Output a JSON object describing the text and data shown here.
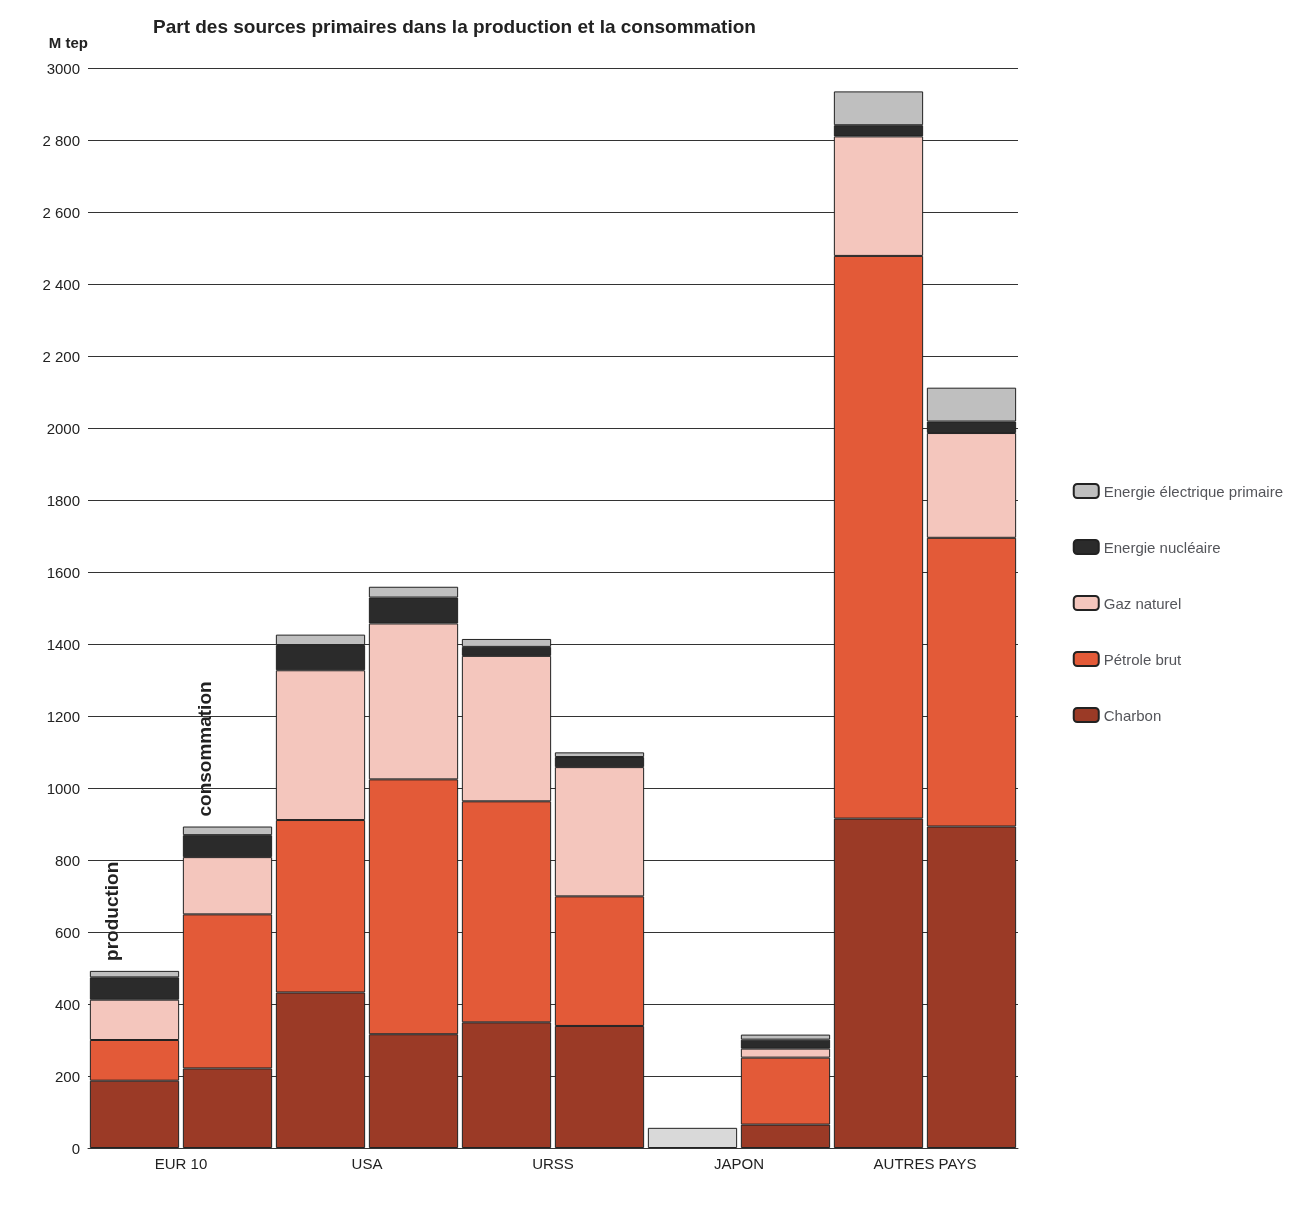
{
  "chart_data": {
    "type": "bar",
    "title": "Part des sources primaires dans la production et la consommation",
    "ylabel": "M tep",
    "categories": [
      "EUR 10",
      null,
      "USA",
      null,
      "URSS",
      null,
      "JAPON",
      null,
      "AUTRES PAYS",
      null
    ],
    "stacked": true,
    "series": [
      {
        "color": "#d9d9d9",
        "values": [
          null,
          null,
          null,
          null,
          null,
          null,
          56,
          null,
          null,
          null
        ]
      },
      {
        "name": "Charbon",
        "color": "#9b3a26",
        "values": [
          187,
          221,
          432,
          316,
          349,
          339,
          null,
          65,
          915,
          893
        ]
      },
      {
        "name": "Pétrole brut",
        "color": "#e35a38",
        "values": [
          113,
          428,
          479,
          708,
          614,
          360,
          null,
          186,
          1563,
          802
        ]
      },
      {
        "name": "Gaz naturel",
        "color": "#f4c6bd",
        "values": [
          112,
          159,
          416,
          433,
          404,
          359,
          null,
          25,
          332,
          291
        ]
      },
      {
        "name": "Energie nucléaire",
        "color": "#2b2b2b",
        "values": [
          62,
          61,
          70,
          72,
          25,
          28,
          null,
          25,
          31,
          32
        ]
      },
      {
        "name": "Energie électrique primaire",
        "color": "#bfbfbf",
        "values": [
          18,
          24,
          29,
          30,
          22,
          13,
          null,
          14,
          94,
          94
        ]
      }
    ],
    "ylim": [
      0,
      3000
    ],
    "yticks": [
      0,
      200,
      400,
      600,
      800,
      1000,
      1200,
      1400,
      1600,
      1800,
      2000,
      {
        "value": 2200,
        "label": "2 200"
      },
      {
        "value": 2400,
        "label": "2 400"
      },
      {
        "value": 2600,
        "label": "2 600"
      },
      {
        "value": 2800,
        "label": "2 800"
      },
      3000
    ],
    "grid": "y",
    "legend": "right",
    "annotations": [
      "production",
      "consommation"
    ]
  }
}
